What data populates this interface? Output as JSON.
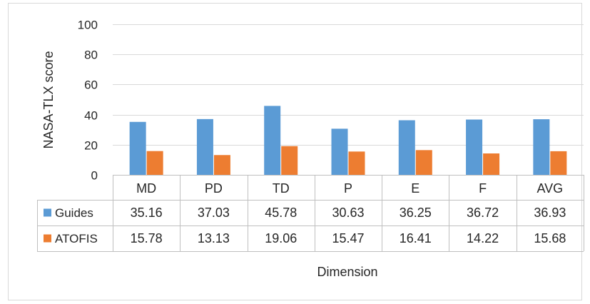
{
  "chart_data": {
    "type": "bar",
    "title": "",
    "ylabel": "NASA-TLX score",
    "xlabel": "Dimension",
    "ylim": [
      0,
      100
    ],
    "yticks": [
      0,
      20,
      40,
      60,
      80,
      100
    ],
    "ytick_labels": [
      "0",
      "20",
      "40",
      "60",
      "80",
      "100"
    ],
    "grid": true,
    "legend": "data-table",
    "categories": [
      "MD",
      "PD",
      "TD",
      "P",
      "E",
      "F",
      "AVG"
    ],
    "series": [
      {
        "name": "Guides",
        "color": "#5B9BD5",
        "values": [
          35.16,
          37.03,
          45.78,
          30.63,
          36.25,
          36.72,
          36.93
        ],
        "labels": [
          "35.16",
          "37.03",
          "45.78",
          "30.63",
          "36.25",
          "36.72",
          "36.93"
        ]
      },
      {
        "name": "ATOFIS",
        "color": "#ED7D31",
        "values": [
          15.78,
          13.13,
          19.06,
          15.47,
          16.41,
          14.22,
          15.68
        ],
        "labels": [
          "15.78",
          "13.13",
          "19.06",
          "15.47",
          "16.41",
          "14.22",
          "15.68"
        ]
      }
    ]
  }
}
